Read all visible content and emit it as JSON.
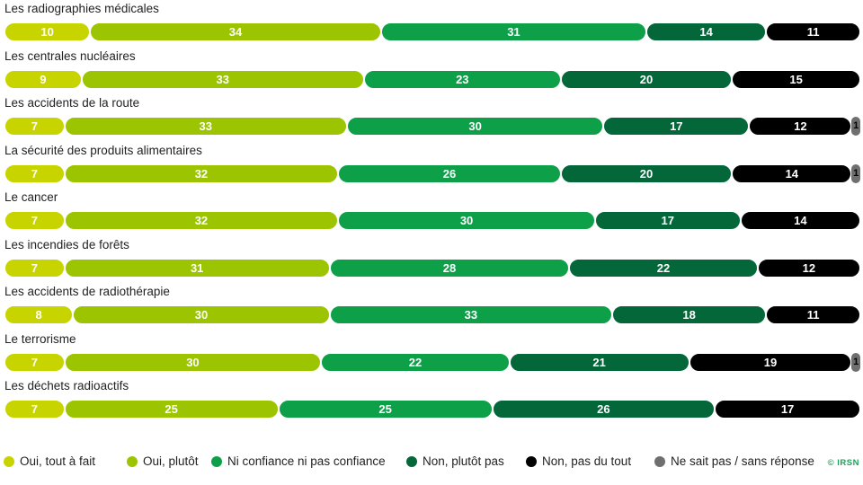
{
  "chart_data": {
    "type": "bar",
    "orientation": "horizontal",
    "stacked": true,
    "categories": [
      "Les radiographies médicales",
      "Les centrales nucléaires",
      "Les accidents de la route",
      "La sécurité des produits alimentaires",
      "Le cancer",
      "Les incendies de forêts",
      "Les accidents de radiothérapie",
      "Le terrorisme",
      "Les déchets radioactifs"
    ],
    "series": [
      {
        "name": "Oui, tout à fait",
        "color": "#c8d400",
        "label_color": "#ffffff",
        "values": [
          10,
          9,
          7,
          7,
          7,
          7,
          8,
          7,
          7
        ]
      },
      {
        "name": "Oui, plutôt",
        "color": "#9cc400",
        "label_color": "#ffffff",
        "values": [
          34,
          33,
          33,
          32,
          32,
          31,
          30,
          30,
          25
        ]
      },
      {
        "name": "Ni confiance ni pas confiance",
        "color": "#0ea049",
        "label_color": "#ffffff",
        "values": [
          31,
          23,
          30,
          26,
          30,
          28,
          33,
          22,
          25
        ]
      },
      {
        "name": "Non, plutôt pas",
        "color": "#03673a",
        "label_color": "#ffffff",
        "values": [
          14,
          20,
          17,
          20,
          17,
          22,
          18,
          21,
          26
        ]
      },
      {
        "name": "Non, pas du tout",
        "color": "#000000",
        "label_color": "#ffffff",
        "values": [
          11,
          15,
          12,
          14,
          14,
          12,
          11,
          19,
          17
        ]
      },
      {
        "name": "Ne sait pas / sans réponse",
        "color": "#6f6f6f",
        "label_color": "#000000",
        "values": [
          0,
          0,
          1,
          1,
          0,
          0,
          0,
          1,
          0
        ]
      }
    ],
    "data_labels": true,
    "legend_position": "bottom",
    "grid": false
  },
  "credit": "© IRSN"
}
